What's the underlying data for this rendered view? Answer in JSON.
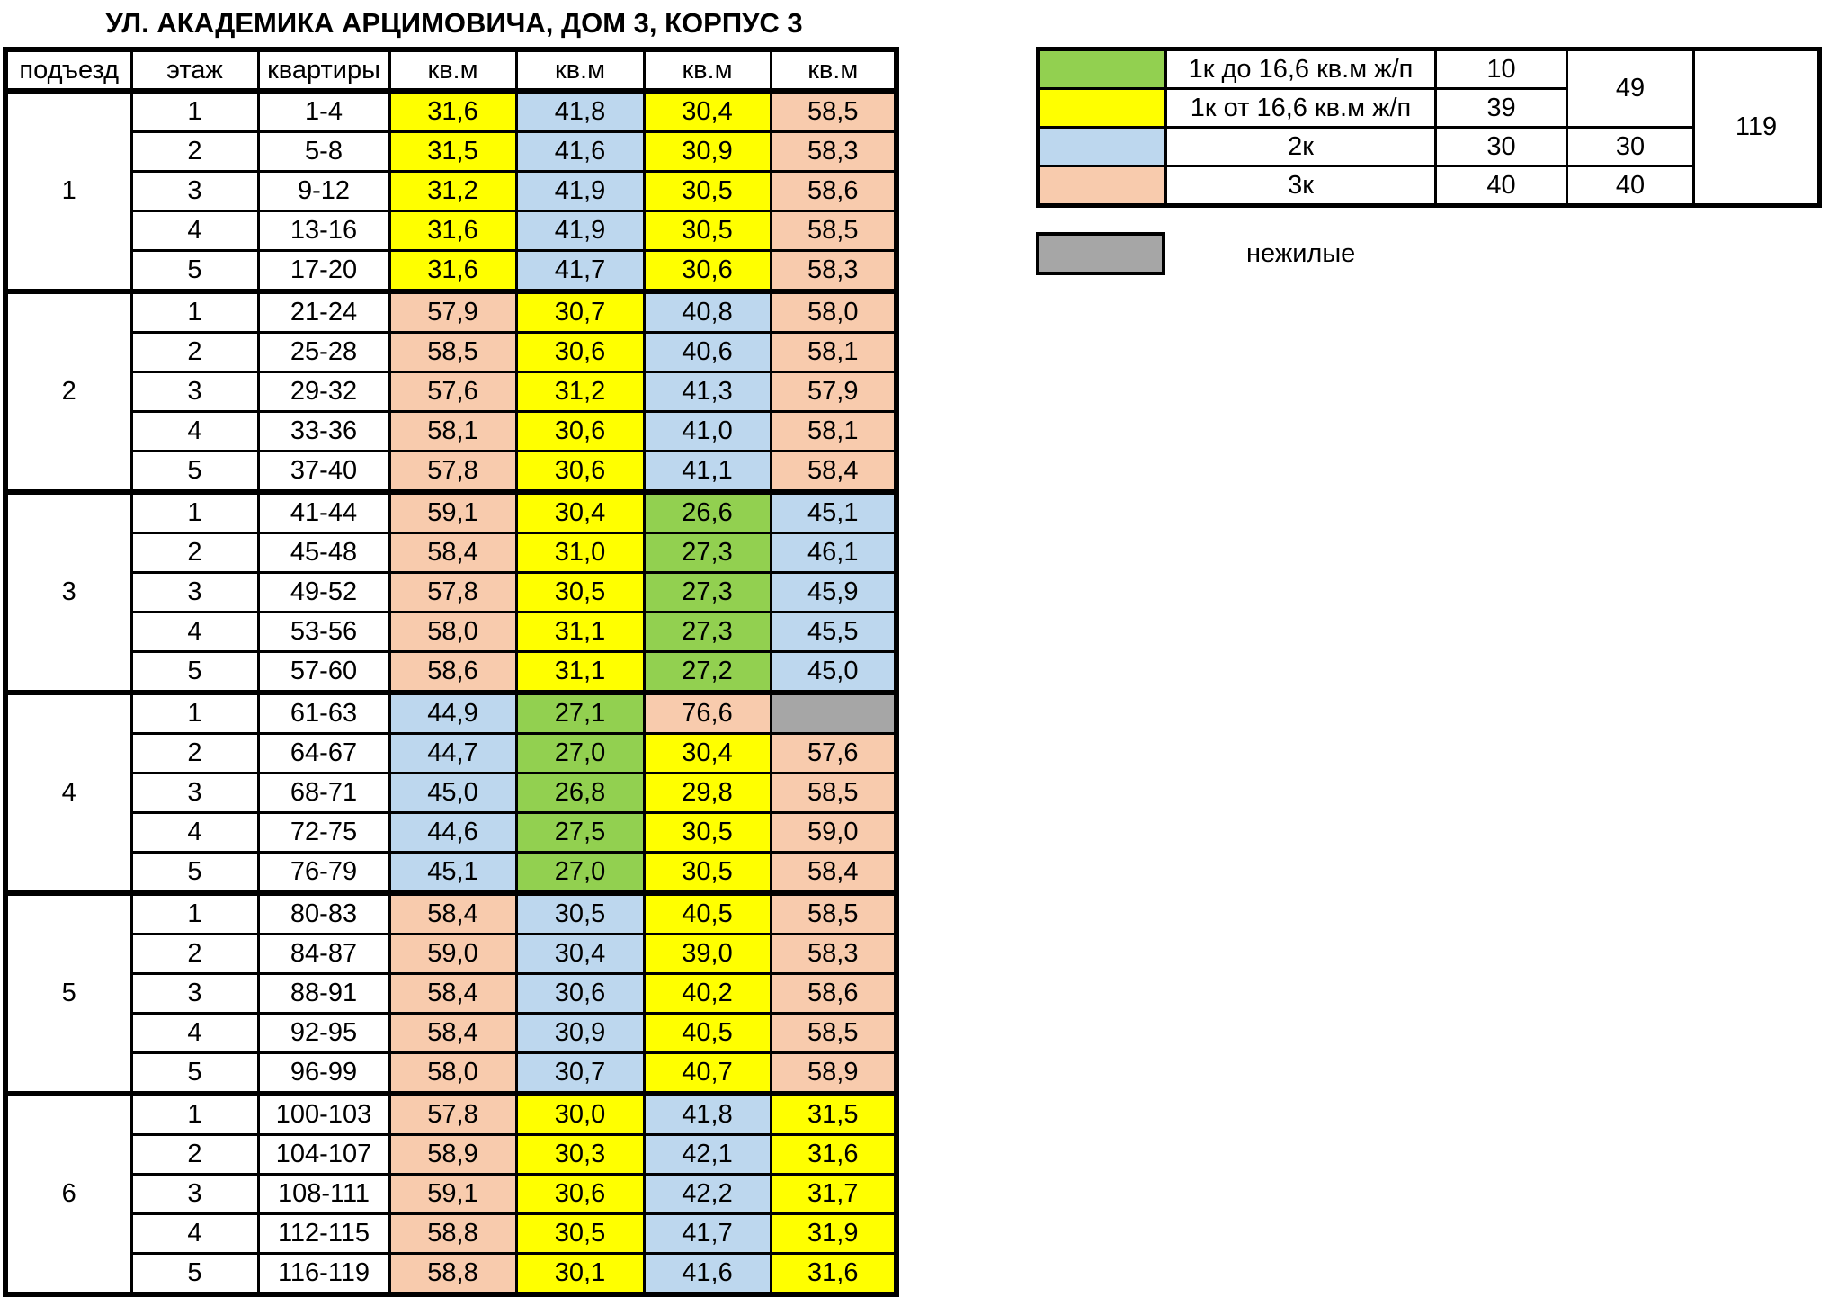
{
  "title": "УЛ. АКАДЕМИКА АРЦИМОВИЧА, ДОМ 3, КОРПУС 3",
  "colors": {
    "green": "#92D050",
    "yellow": "#FFFF00",
    "blue": "#BDD7EE",
    "peach": "#F8CBAD",
    "gray": "#A6A6A6",
    "white": "#FFFFFF",
    "border": "#000000"
  },
  "main_table": {
    "headers": [
      "подъезд",
      "этаж",
      "квартиры",
      "кв.м",
      "кв.м",
      "кв.м",
      "кв.м"
    ],
    "entrances": [
      {
        "entrance": "1",
        "floors": [
          {
            "floor": "1",
            "apartments": "1-4",
            "areas": [
              {
                "v": "31,6",
                "c": "yellow"
              },
              {
                "v": "41,8",
                "c": "blue"
              },
              {
                "v": "30,4",
                "c": "yellow"
              },
              {
                "v": "58,5",
                "c": "peach"
              }
            ]
          },
          {
            "floor": "2",
            "apartments": "5-8",
            "areas": [
              {
                "v": "31,5",
                "c": "yellow"
              },
              {
                "v": "41,6",
                "c": "blue"
              },
              {
                "v": "30,9",
                "c": "yellow"
              },
              {
                "v": "58,3",
                "c": "peach"
              }
            ]
          },
          {
            "floor": "3",
            "apartments": "9-12",
            "areas": [
              {
                "v": "31,2",
                "c": "yellow"
              },
              {
                "v": "41,9",
                "c": "blue"
              },
              {
                "v": "30,5",
                "c": "yellow"
              },
              {
                "v": "58,6",
                "c": "peach"
              }
            ]
          },
          {
            "floor": "4",
            "apartments": "13-16",
            "areas": [
              {
                "v": "31,6",
                "c": "yellow"
              },
              {
                "v": "41,9",
                "c": "blue"
              },
              {
                "v": "30,5",
                "c": "yellow"
              },
              {
                "v": "58,5",
                "c": "peach"
              }
            ]
          },
          {
            "floor": "5",
            "apartments": "17-20",
            "areas": [
              {
                "v": "31,6",
                "c": "yellow"
              },
              {
                "v": "41,7",
                "c": "blue"
              },
              {
                "v": "30,6",
                "c": "yellow"
              },
              {
                "v": "58,3",
                "c": "peach"
              }
            ]
          }
        ]
      },
      {
        "entrance": "2",
        "floors": [
          {
            "floor": "1",
            "apartments": "21-24",
            "areas": [
              {
                "v": "57,9",
                "c": "peach"
              },
              {
                "v": "30,7",
                "c": "yellow"
              },
              {
                "v": "40,8",
                "c": "blue"
              },
              {
                "v": "58,0",
                "c": "peach"
              }
            ]
          },
          {
            "floor": "2",
            "apartments": "25-28",
            "areas": [
              {
                "v": "58,5",
                "c": "peach"
              },
              {
                "v": "30,6",
                "c": "yellow"
              },
              {
                "v": "40,6",
                "c": "blue"
              },
              {
                "v": "58,1",
                "c": "peach"
              }
            ]
          },
          {
            "floor": "3",
            "apartments": "29-32",
            "areas": [
              {
                "v": "57,6",
                "c": "peach"
              },
              {
                "v": "31,2",
                "c": "yellow"
              },
              {
                "v": "41,3",
                "c": "blue"
              },
              {
                "v": "57,9",
                "c": "peach"
              }
            ]
          },
          {
            "floor": "4",
            "apartments": "33-36",
            "areas": [
              {
                "v": "58,1",
                "c": "peach"
              },
              {
                "v": "30,6",
                "c": "yellow"
              },
              {
                "v": "41,0",
                "c": "blue"
              },
              {
                "v": "58,1",
                "c": "peach"
              }
            ]
          },
          {
            "floor": "5",
            "apartments": "37-40",
            "areas": [
              {
                "v": "57,8",
                "c": "peach"
              },
              {
                "v": "30,6",
                "c": "yellow"
              },
              {
                "v": "41,1",
                "c": "blue"
              },
              {
                "v": "58,4",
                "c": "peach"
              }
            ]
          }
        ]
      },
      {
        "entrance": "3",
        "floors": [
          {
            "floor": "1",
            "apartments": "41-44",
            "areas": [
              {
                "v": "59,1",
                "c": "peach"
              },
              {
                "v": "30,4",
                "c": "yellow"
              },
              {
                "v": "26,6",
                "c": "green"
              },
              {
                "v": "45,1",
                "c": "blue"
              }
            ]
          },
          {
            "floor": "2",
            "apartments": "45-48",
            "areas": [
              {
                "v": "58,4",
                "c": "peach"
              },
              {
                "v": "31,0",
                "c": "yellow"
              },
              {
                "v": "27,3",
                "c": "green"
              },
              {
                "v": "46,1",
                "c": "blue"
              }
            ]
          },
          {
            "floor": "3",
            "apartments": "49-52",
            "areas": [
              {
                "v": "57,8",
                "c": "peach"
              },
              {
                "v": "30,5",
                "c": "yellow"
              },
              {
                "v": "27,3",
                "c": "green"
              },
              {
                "v": "45,9",
                "c": "blue"
              }
            ]
          },
          {
            "floor": "4",
            "apartments": "53-56",
            "areas": [
              {
                "v": "58,0",
                "c": "peach"
              },
              {
                "v": "31,1",
                "c": "yellow"
              },
              {
                "v": "27,3",
                "c": "green"
              },
              {
                "v": "45,5",
                "c": "blue"
              }
            ]
          },
          {
            "floor": "5",
            "apartments": "57-60",
            "areas": [
              {
                "v": "58,6",
                "c": "peach"
              },
              {
                "v": "31,1",
                "c": "yellow"
              },
              {
                "v": "27,2",
                "c": "green"
              },
              {
                "v": "45,0",
                "c": "blue"
              }
            ]
          }
        ]
      },
      {
        "entrance": "4",
        "floors": [
          {
            "floor": "1",
            "apartments": "61-63",
            "areas": [
              {
                "v": "44,9",
                "c": "blue"
              },
              {
                "v": "27,1",
                "c": "green"
              },
              {
                "v": "76,6",
                "c": "peach"
              },
              {
                "v": "",
                "c": "gray"
              }
            ]
          },
          {
            "floor": "2",
            "apartments": "64-67",
            "areas": [
              {
                "v": "44,7",
                "c": "blue"
              },
              {
                "v": "27,0",
                "c": "green"
              },
              {
                "v": "30,4",
                "c": "yellow"
              },
              {
                "v": "57,6",
                "c": "peach"
              }
            ]
          },
          {
            "floor": "3",
            "apartments": "68-71",
            "areas": [
              {
                "v": "45,0",
                "c": "blue"
              },
              {
                "v": "26,8",
                "c": "green"
              },
              {
                "v": "29,8",
                "c": "yellow"
              },
              {
                "v": "58,5",
                "c": "peach"
              }
            ]
          },
          {
            "floor": "4",
            "apartments": "72-75",
            "areas": [
              {
                "v": "44,6",
                "c": "blue"
              },
              {
                "v": "27,5",
                "c": "green"
              },
              {
                "v": "30,5",
                "c": "yellow"
              },
              {
                "v": "59,0",
                "c": "peach"
              }
            ]
          },
          {
            "floor": "5",
            "apartments": "76-79",
            "areas": [
              {
                "v": "45,1",
                "c": "blue"
              },
              {
                "v": "27,0",
                "c": "green"
              },
              {
                "v": "30,5",
                "c": "yellow"
              },
              {
                "v": "58,4",
                "c": "peach"
              }
            ]
          }
        ]
      },
      {
        "entrance": "5",
        "floors": [
          {
            "floor": "1",
            "apartments": "80-83",
            "areas": [
              {
                "v": "58,4",
                "c": "peach"
              },
              {
                "v": "30,5",
                "c": "blue"
              },
              {
                "v": "40,5",
                "c": "yellow"
              },
              {
                "v": "58,5",
                "c": "peach"
              }
            ]
          },
          {
            "floor": "2",
            "apartments": "84-87",
            "areas": [
              {
                "v": "59,0",
                "c": "peach"
              },
              {
                "v": "30,4",
                "c": "blue"
              },
              {
                "v": "39,0",
                "c": "yellow"
              },
              {
                "v": "58,3",
                "c": "peach"
              }
            ]
          },
          {
            "floor": "3",
            "apartments": "88-91",
            "areas": [
              {
                "v": "58,4",
                "c": "peach"
              },
              {
                "v": "30,6",
                "c": "blue"
              },
              {
                "v": "40,2",
                "c": "yellow"
              },
              {
                "v": "58,6",
                "c": "peach"
              }
            ]
          },
          {
            "floor": "4",
            "apartments": "92-95",
            "areas": [
              {
                "v": "58,4",
                "c": "peach"
              },
              {
                "v": "30,9",
                "c": "blue"
              },
              {
                "v": "40,5",
                "c": "yellow"
              },
              {
                "v": "58,5",
                "c": "peach"
              }
            ]
          },
          {
            "floor": "5",
            "apartments": "96-99",
            "areas": [
              {
                "v": "58,0",
                "c": "peach"
              },
              {
                "v": "30,7",
                "c": "blue"
              },
              {
                "v": "40,7",
                "c": "yellow"
              },
              {
                "v": "58,9",
                "c": "peach"
              }
            ]
          }
        ]
      },
      {
        "entrance": "6",
        "floors": [
          {
            "floor": "1",
            "apartments": "100-103",
            "areas": [
              {
                "v": "57,8",
                "c": "peach"
              },
              {
                "v": "30,0",
                "c": "yellow"
              },
              {
                "v": "41,8",
                "c": "blue"
              },
              {
                "v": "31,5",
                "c": "yellow"
              }
            ]
          },
          {
            "floor": "2",
            "apartments": "104-107",
            "areas": [
              {
                "v": "58,9",
                "c": "peach"
              },
              {
                "v": "30,3",
                "c": "yellow"
              },
              {
                "v": "42,1",
                "c": "blue"
              },
              {
                "v": "31,6",
                "c": "yellow"
              }
            ]
          },
          {
            "floor": "3",
            "apartments": "108-111",
            "areas": [
              {
                "v": "59,1",
                "c": "peach"
              },
              {
                "v": "30,6",
                "c": "yellow"
              },
              {
                "v": "42,2",
                "c": "blue"
              },
              {
                "v": "31,7",
                "c": "yellow"
              }
            ]
          },
          {
            "floor": "4",
            "apartments": "112-115",
            "areas": [
              {
                "v": "58,8",
                "c": "peach"
              },
              {
                "v": "30,5",
                "c": "yellow"
              },
              {
                "v": "41,7",
                "c": "blue"
              },
              {
                "v": "31,9",
                "c": "yellow"
              }
            ]
          },
          {
            "floor": "5",
            "apartments": "116-119",
            "areas": [
              {
                "v": "58,8",
                "c": "peach"
              },
              {
                "v": "30,1",
                "c": "yellow"
              },
              {
                "v": "41,6",
                "c": "blue"
              },
              {
                "v": "31,6",
                "c": "yellow"
              }
            ]
          }
        ]
      }
    ]
  },
  "legend_table": {
    "rows": [
      {
        "color": "green",
        "label": "1к до 16,6 кв.м ж/п",
        "count": "10"
      },
      {
        "color": "yellow",
        "label": "1к от 16,6 кв.м ж/п",
        "count": "39"
      },
      {
        "color": "blue",
        "label": "2к",
        "count": "30",
        "subtotal": "30"
      },
      {
        "color": "peach",
        "label": "3к",
        "count": "40",
        "subtotal": "40"
      }
    ],
    "subtotal_1k": "49",
    "total": "119"
  },
  "gray_legend": {
    "color": "gray",
    "label": "нежилые"
  }
}
